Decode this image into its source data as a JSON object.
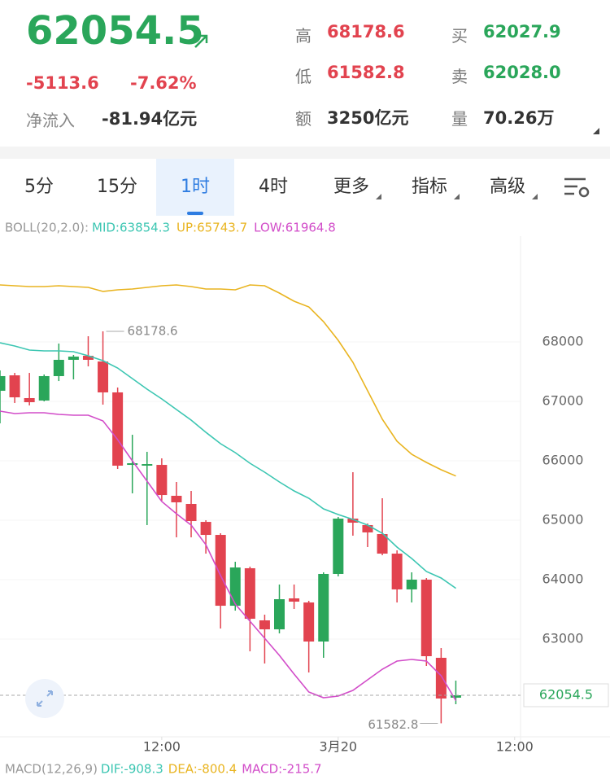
{
  "header": {
    "price": "62054.5",
    "change": "-5113.6",
    "change_pct": "-7.62%",
    "net_inflow_label": "净流入",
    "net_inflow": "-81.94亿元",
    "stats": [
      {
        "label": "高",
        "value": "68178.6"
      },
      {
        "label": "低",
        "value": "61582.8"
      },
      {
        "label": "额",
        "value": "3250亿元"
      },
      {
        "label": "买",
        "value": "62027.9"
      },
      {
        "label": "卖",
        "value": "62028.0"
      },
      {
        "label": "量",
        "value": "70.26万"
      }
    ]
  },
  "tabs": [
    "5分",
    "15分",
    "1时",
    "4时",
    "更多",
    "指标",
    "高级"
  ],
  "active_tab": 2,
  "chart_data": {
    "type": "candlestick",
    "indicator_label": "BOLL(20,2.0):",
    "up_color": "#2aa65a",
    "down_color": "#e2434f",
    "x": [
      0,
      1,
      2,
      3,
      4,
      5,
      6,
      7,
      8,
      9,
      10,
      11,
      12,
      13,
      14,
      15,
      16,
      17,
      18,
      19,
      20,
      21,
      22,
      23,
      24,
      25,
      26,
      27,
      28,
      29,
      30,
      31
    ],
    "open": [
      67178,
      67438,
      67055,
      67014,
      67425,
      67699,
      67767,
      67671,
      67151,
      65931,
      65918,
      65931,
      65411,
      65274,
      64972,
      64753,
      63561,
      64192,
      63315,
      63164,
      63685,
      63616,
      62959,
      64096,
      65027,
      64918,
      64767,
      64438,
      63836,
      64000,
      62685,
      62014
    ],
    "high": [
      67521,
      67479,
      67479,
      67452,
      67973,
      67781,
      68096,
      68178.6,
      67233,
      66438,
      66151,
      66041,
      65644,
      65493,
      65000,
      64781,
      64301,
      64219,
      63411,
      63918,
      63918,
      63644,
      64123,
      65055,
      65808,
      64945,
      65370,
      64493,
      64123,
      64027,
      62849,
      62301
    ],
    "low": [
      66630,
      66973,
      66932,
      67000,
      67342,
      67370,
      67589,
      66945,
      65863,
      65452,
      64918,
      65329,
      64712,
      64712,
      64438,
      63178,
      63479,
      62794,
      62589,
      63096,
      63507,
      62438,
      62685,
      64055,
      64740,
      64548,
      64411,
      63616,
      63616,
      62548,
      61582.8,
      61904
    ],
    "close": [
      67425,
      67068,
      66986,
      67425,
      67699,
      67753,
      67699,
      67151,
      65918,
      65959,
      65945,
      65424,
      65301,
      64986,
      64753,
      63561,
      64205,
      63342,
      63164,
      63671,
      63630,
      62959,
      64096,
      65027,
      64959,
      64795,
      64438,
      63836,
      64000,
      62712,
      62000,
      62054.5
    ],
    "series": [
      {
        "label": "MID:63854.3",
        "color": "#3cc6b2",
        "values": [
          67986,
          67932,
          67863,
          67849,
          67849,
          67836,
          67767,
          67685,
          67562,
          67384,
          67205,
          67041,
          66863,
          66685,
          66479,
          66288,
          66137,
          65959,
          65808,
          65644,
          65493,
          65370,
          65192,
          65096,
          65014,
          64918,
          64781,
          64548,
          64356,
          64137,
          64027,
          63854.3
        ]
      },
      {
        "label": "UP:65743.7",
        "color": "#e9b420",
        "values": [
          68959,
          68945,
          68932,
          68932,
          68945,
          68932,
          68918,
          68849,
          68877,
          68890,
          68918,
          68945,
          68959,
          68932,
          68890,
          68890,
          68877,
          68959,
          68945,
          68822,
          68685,
          68589,
          68342,
          68027,
          67658,
          67178,
          66699,
          66329,
          66110,
          65973,
          65849,
          65743.7
        ]
      },
      {
        "label": "LOW:61964.8",
        "color": "#d24dc9",
        "values": [
          66836,
          66795,
          66808,
          66808,
          66781,
          66767,
          66767,
          66671,
          66356,
          66000,
          65658,
          65315,
          65110,
          64918,
          64589,
          64068,
          63589,
          63301,
          63014,
          62726,
          62411,
          62110,
          62014,
          62041,
          62137,
          62315,
          62493,
          62630,
          62658,
          62630,
          62384,
          61964.8
        ]
      }
    ],
    "xlim": [
      0,
      35.4
    ],
    "ylim": [
      61356,
      69781
    ],
    "yticks": [
      63000,
      64000,
      65000,
      66000,
      67000,
      68000
    ],
    "xticks": [
      {
        "value": 11,
        "label": "12:00"
      },
      {
        "value": 23,
        "label": "3月20"
      },
      {
        "value": 35,
        "label": "12:00"
      }
    ],
    "grid": true
  },
  "macd": {
    "label": "MACD(12,26,9)",
    "items": [
      {
        "text": "DIF:-908.3",
        "color": "#3cc6b2"
      },
      {
        "text": "DEA:-800.4",
        "color": "#e9b420"
      },
      {
        "text": "MACD:-215.7",
        "color": "#d24dc9"
      }
    ]
  }
}
